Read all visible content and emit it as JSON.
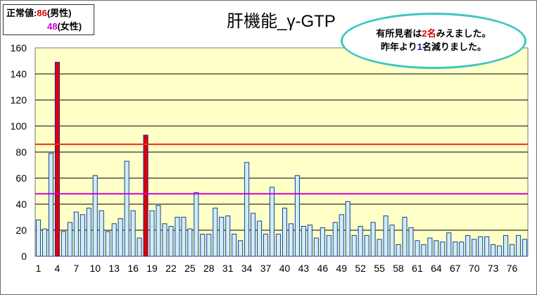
{
  "legend": {
    "label": "正常値:",
    "male_value": "86",
    "male_label": "(男性)",
    "female_value": "48",
    "female_label": "(女性)"
  },
  "title": "肝機能_γ-GTP",
  "note": {
    "line1_pre": "有所見者は",
    "line1_num": "2名",
    "line1_post": "みえました。",
    "line2_pre": "昨年より",
    "line2_num": "1",
    "line2_post": "名減りました。"
  },
  "colors": {
    "plot_bg": "#ffffc8",
    "bar_normal_fill": "#cdeefb",
    "bar_normal_stroke": "#1c3f8c",
    "bar_high_fill": "#e00000",
    "bar_high_stroke": "#2020a0",
    "male_line": "#ff2a00",
    "female_line": "#d000d0",
    "bubble_border": "#3cc6c6"
  },
  "chart_data": {
    "type": "bar",
    "ylim": [
      0,
      160
    ],
    "yticks": [
      0,
      20,
      40,
      60,
      80,
      100,
      120,
      140,
      160
    ],
    "xtick_labels": [
      "1",
      "4",
      "7",
      "10",
      "13",
      "16",
      "19",
      "22",
      "25",
      "28",
      "31",
      "34",
      "37",
      "40",
      "43",
      "46",
      "49",
      "52",
      "55",
      "58",
      "61",
      "64",
      "67",
      "70",
      "73",
      "76"
    ],
    "reference_lines": [
      {
        "label": "男性",
        "value": 86
      },
      {
        "label": "女性",
        "value": 48
      }
    ],
    "values": [
      28,
      21,
      79,
      149,
      19,
      26,
      34,
      32,
      37,
      62,
      35,
      19,
      25,
      29,
      73,
      35,
      14,
      93,
      35,
      39,
      25,
      23,
      30,
      30,
      21,
      49,
      17,
      17,
      37,
      30,
      31,
      17,
      12,
      72,
      33,
      27,
      17,
      53,
      17,
      37,
      25,
      62,
      23,
      24,
      14,
      22,
      16,
      26,
      32,
      42,
      16,
      23,
      16,
      26,
      13,
      31,
      24,
      9,
      30,
      22,
      12,
      9,
      14,
      12,
      11,
      18,
      11,
      11,
      16,
      13,
      15,
      15,
      9,
      8,
      16,
      9,
      16,
      13
    ],
    "highlighted": [
      4,
      18
    ]
  }
}
